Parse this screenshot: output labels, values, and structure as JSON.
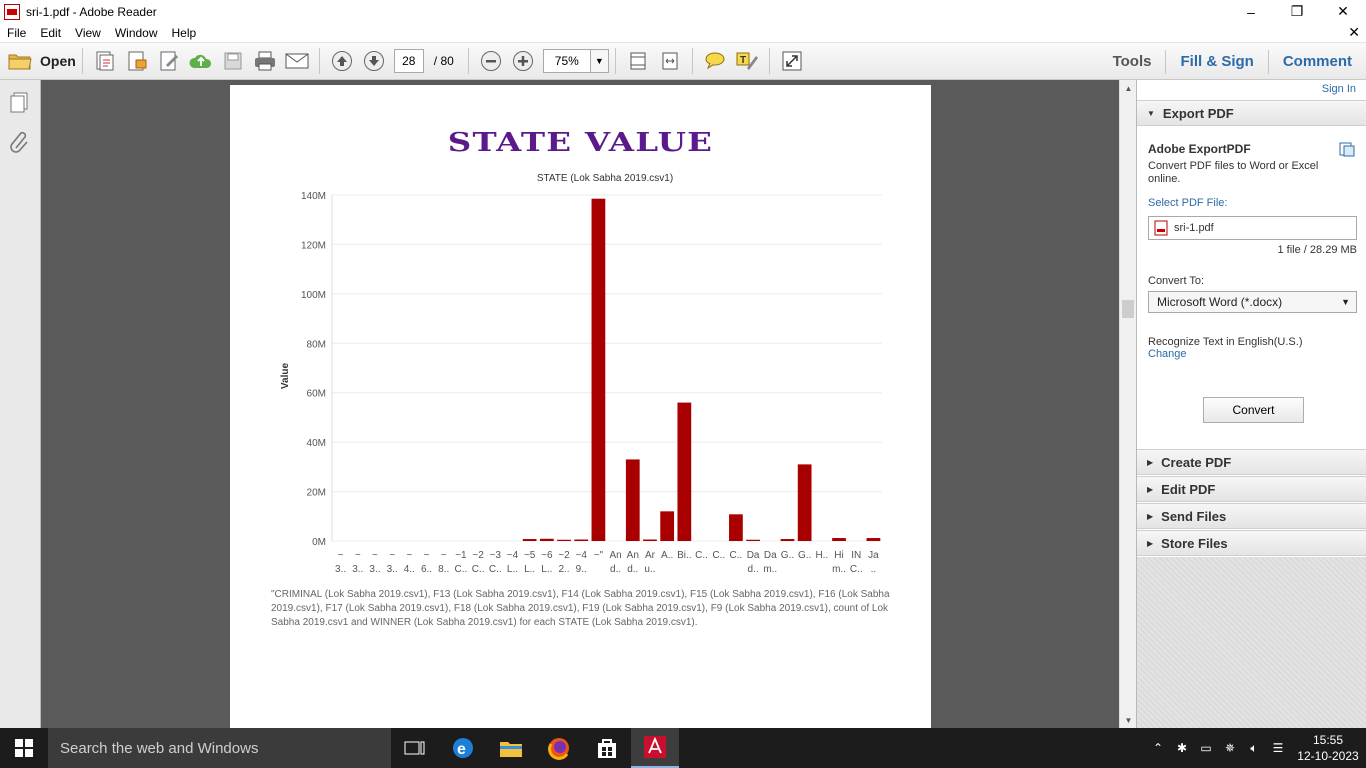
{
  "window": {
    "title": "sri-1.pdf - Adobe Reader"
  },
  "menu": [
    "File",
    "Edit",
    "View",
    "Window",
    "Help"
  ],
  "toolbar": {
    "open_label": "Open",
    "page_current": "28",
    "page_total": "/ 80",
    "zoom": "75%",
    "tabs": [
      "Tools",
      "Fill & Sign",
      "Comment"
    ]
  },
  "document": {
    "heading": "STATE VALUE",
    "caption": "\"CRIMINAL (Lok Sabha 2019.csv1), F13 (Lok Sabha 2019.csv1), F14 (Lok Sabha 2019.csv1), F15 (Lok Sabha 2019.csv1), F16 (Lok Sabha 2019.csv1), F17 (Lok Sabha 2019.csv1), F18 (Lok Sabha 2019.csv1), F19 (Lok Sabha 2019.csv1), F9 (Lok Sabha 2019.csv1), count of Lok Sabha 2019.csv1 and WINNER (Lok Sabha 2019.csv1) for each STATE (Lok Sabha 2019.csv1)."
  },
  "chart_data": {
    "type": "bar",
    "title": "STATE (Lok Sabha 2019.csv1)",
    "xlabel": "",
    "ylabel": "Value",
    "ylim": [
      0,
      140000000
    ],
    "yticks": [
      "0M",
      "20M",
      "40M",
      "60M",
      "80M",
      "100M",
      "120M",
      "140M"
    ],
    "color": "#a80000",
    "categories": [
      [
        "~",
        "3.."
      ],
      [
        "~",
        "3.."
      ],
      [
        "~",
        "3.."
      ],
      [
        "~",
        "3.."
      ],
      [
        "~",
        "4.."
      ],
      [
        "~",
        "6.."
      ],
      [
        "~",
        "8.."
      ],
      [
        "~1",
        "C.."
      ],
      [
        "~2",
        "C.."
      ],
      [
        "~3",
        "C.."
      ],
      [
        "~4",
        "L.."
      ],
      [
        "~5",
        "L.."
      ],
      [
        "~6",
        "L.."
      ],
      [
        "~2",
        "2.."
      ],
      [
        "~4",
        "9.."
      ],
      [
        "~\"",
        ""
      ],
      [
        "An",
        "d.."
      ],
      [
        "An",
        "d.."
      ],
      [
        "Ar",
        "u.."
      ],
      [
        "A..",
        ""
      ],
      [
        "Bi..",
        ""
      ],
      [
        "C..",
        ""
      ],
      [
        "C..",
        ""
      ],
      [
        "C..",
        ""
      ],
      [
        "Da",
        "d.."
      ],
      [
        "Da",
        "m.."
      ],
      [
        "G..",
        ""
      ],
      [
        "G..",
        ""
      ],
      [
        "H..",
        ""
      ],
      [
        "Hi",
        "m.."
      ],
      [
        "IN",
        "C.."
      ],
      [
        "Ja",
        ".."
      ]
    ],
    "values": [
      0,
      0,
      0,
      0,
      0,
      0,
      0,
      0,
      0,
      0,
      0,
      800000,
      900000,
      500000,
      600000,
      138500000,
      0,
      33000000,
      600000,
      12000000,
      56000000,
      0,
      0,
      10800000,
      500000,
      0,
      800000,
      31000000,
      0,
      1200000,
      0,
      1200000
    ]
  },
  "right_panel": {
    "sign_in": "Sign In",
    "export_header": "Export PDF",
    "export_title": "Adobe ExportPDF",
    "export_desc": "Convert PDF files to Word or Excel online.",
    "select_label": "Select PDF File:",
    "file_name": "sri-1.pdf",
    "file_info": "1 file / 28.29 MB",
    "convert_to_label": "Convert To:",
    "convert_to_value": "Microsoft Word (*.docx)",
    "recognize_text": "Recognize Text in English(U.S.)",
    "change_link": "Change",
    "convert_button": "Convert",
    "sections": [
      "Create PDF",
      "Edit PDF",
      "Send Files",
      "Store Files"
    ]
  },
  "taskbar": {
    "search_placeholder": "Search the web and Windows",
    "time": "15:55",
    "date": "12-10-2023"
  }
}
